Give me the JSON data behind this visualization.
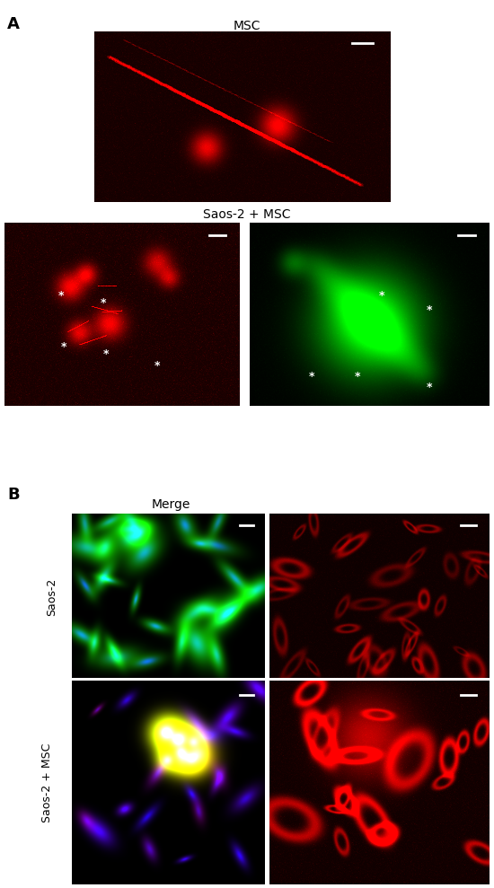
{
  "panel_A_label": "A",
  "panel_B_label": "B",
  "msc_title": "MSC",
  "saos_msc_title": "Saos-2 + MSC",
  "merge_title": "Merge",
  "row_label_saos2": "Saos-2",
  "row_label_saos2_msc": "Saos-2 + MSC",
  "background_color": "#ffffff",
  "fig_width": 5.5,
  "fig_height": 9.89
}
